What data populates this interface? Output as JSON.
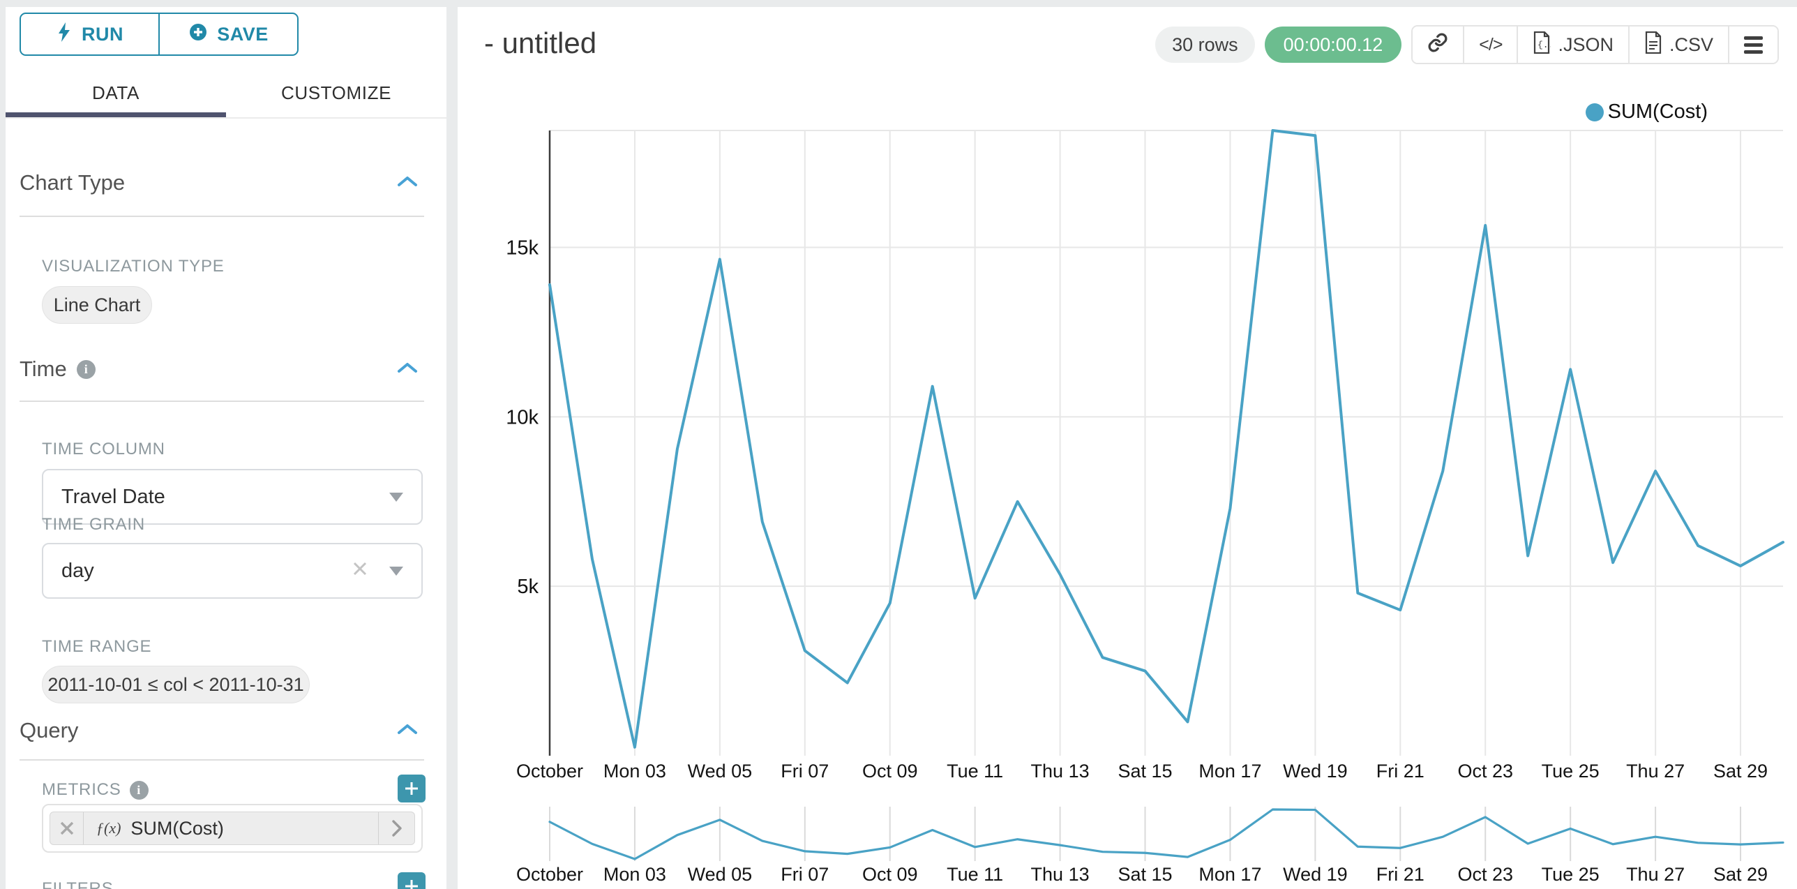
{
  "sidebar": {
    "run_label": "RUN",
    "save_label": "SAVE",
    "tabs": [
      {
        "label": "DATA"
      },
      {
        "label": "CUSTOMIZE"
      }
    ],
    "chart_type_section": {
      "title": "Chart Type",
      "viz_type_label": "VISUALIZATION TYPE",
      "viz_type_value": "Line Chart"
    },
    "time_section": {
      "title": "Time",
      "time_column_label": "TIME COLUMN",
      "time_column_value": "Travel Date",
      "time_grain_label": "TIME GRAIN",
      "time_grain_value": "day",
      "time_range_label": "TIME RANGE",
      "time_range_value": "2011-10-01 ≤ col < 2011-10-31"
    },
    "query_section": {
      "title": "Query",
      "metrics_label": "METRICS",
      "metric_fx": "ƒ(x)",
      "metric_name": "SUM(Cost)",
      "filters_label": "FILTERS"
    }
  },
  "header": {
    "title": "- untitled",
    "rows_badge": "30 rows",
    "timer_badge": "00:00:00.12",
    "code_button": "</>",
    "json_button": ".JSON",
    "csv_button": ".CSV"
  },
  "colors": {
    "accent_teal": "#2189a8",
    "timer_green": "#6cbd8f",
    "tab_underline": "#4f536e",
    "chevron_blue": "#48a2d5"
  },
  "chart_data": {
    "type": "line",
    "x_dates": [
      "2011-10-01",
      "2011-10-02",
      "2011-10-03",
      "2011-10-04",
      "2011-10-05",
      "2011-10-06",
      "2011-10-07",
      "2011-10-08",
      "2011-10-09",
      "2011-10-10",
      "2011-10-11",
      "2011-10-12",
      "2011-10-13",
      "2011-10-14",
      "2011-10-15",
      "2011-10-16",
      "2011-10-17",
      "2011-10-18",
      "2011-10-19",
      "2011-10-20",
      "2011-10-21",
      "2011-10-22",
      "2011-10-23",
      "2011-10-24",
      "2011-10-25",
      "2011-10-26",
      "2011-10-27",
      "2011-10-28",
      "2011-10-29",
      "2011-10-30"
    ],
    "series": [
      {
        "name": "SUM(Cost)",
        "color": "#49a2c5",
        "values": [
          13900,
          5800,
          250,
          9050,
          14650,
          6900,
          3100,
          2150,
          4500,
          10900,
          4650,
          7500,
          5350,
          2900,
          2500,
          1000,
          7300,
          18450,
          18300,
          4800,
          4300,
          8400,
          15650,
          5900,
          11400,
          5700,
          8400,
          6200,
          5600,
          6300
        ]
      }
    ],
    "x_tick_labels": [
      "October",
      "Mon 03",
      "Wed 05",
      "Fri 07",
      "Oct 09",
      "Tue 11",
      "Thu 13",
      "Sat 15",
      "Mon 17",
      "Wed 19",
      "Fri 21",
      "Oct 23",
      "Tue 25",
      "Thu 27",
      "Sat 29"
    ],
    "y_ticks": [
      {
        "label": "5k",
        "value": 5000
      },
      {
        "label": "10k",
        "value": 10000
      },
      {
        "label": "15k",
        "value": 15000
      }
    ],
    "y_max": 18450,
    "xlabel": "",
    "ylabel": "",
    "grid": true,
    "legend_position": "top-right",
    "mini_chart": true
  }
}
